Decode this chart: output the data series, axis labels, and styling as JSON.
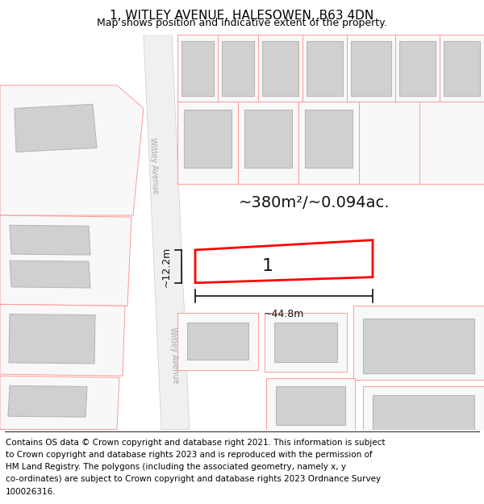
{
  "title": "1, WITLEY AVENUE, HALESOWEN, B63 4DN",
  "subtitle": "Map shows position and indicative extent of the property.",
  "footer_lines": [
    "Contains OS data © Crown copyright and database right 2021. This information is subject",
    "to Crown copyright and database rights 2023 and is reproduced with the permission of",
    "HM Land Registry. The polygons (including the associated geometry, namely x, y",
    "co-ordinates) are subject to Crown copyright and database rights 2023 Ordnance Survey",
    "100026316."
  ],
  "area_label": "~380m²/~0.094ac.",
  "width_label": "~44.8m",
  "height_label": "~12.2m",
  "plot_number": "1",
  "bg_color": "#ffffff",
  "plot_edge_color": "#ff0000",
  "lot_edge_color": "#ff9999",
  "bld_fill": "#d0d0d0",
  "bld_edge": "#b8b8b8",
  "road_fill": "#f0f0f0",
  "road_edge": "#cccccc",
  "dim_color": "#111111",
  "title_fontsize": 11,
  "subtitle_fontsize": 9,
  "footer_fontsize": 7.5,
  "area_fontsize": 14,
  "plot_label_fontsize": 16,
  "dim_fontsize": 9,
  "road_text_color": "#aaaaaa",
  "road_text_size": 7
}
